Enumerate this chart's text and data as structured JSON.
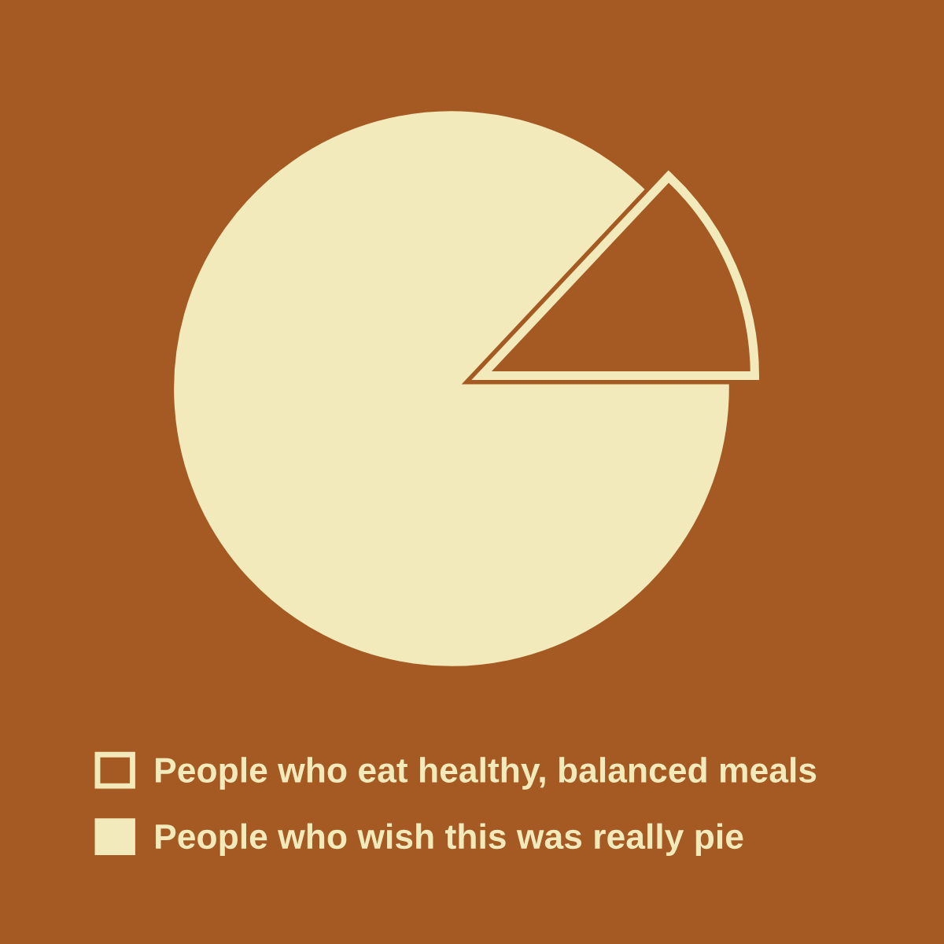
{
  "chart_data": {
    "type": "pie",
    "categories": [
      "People who eat healthy, balanced meals",
      "People who wish this was really pie"
    ],
    "values": [
      13,
      87
    ],
    "colors": [
      "#a65a23",
      "#f2eabb"
    ],
    "legend": "bottom"
  }
}
